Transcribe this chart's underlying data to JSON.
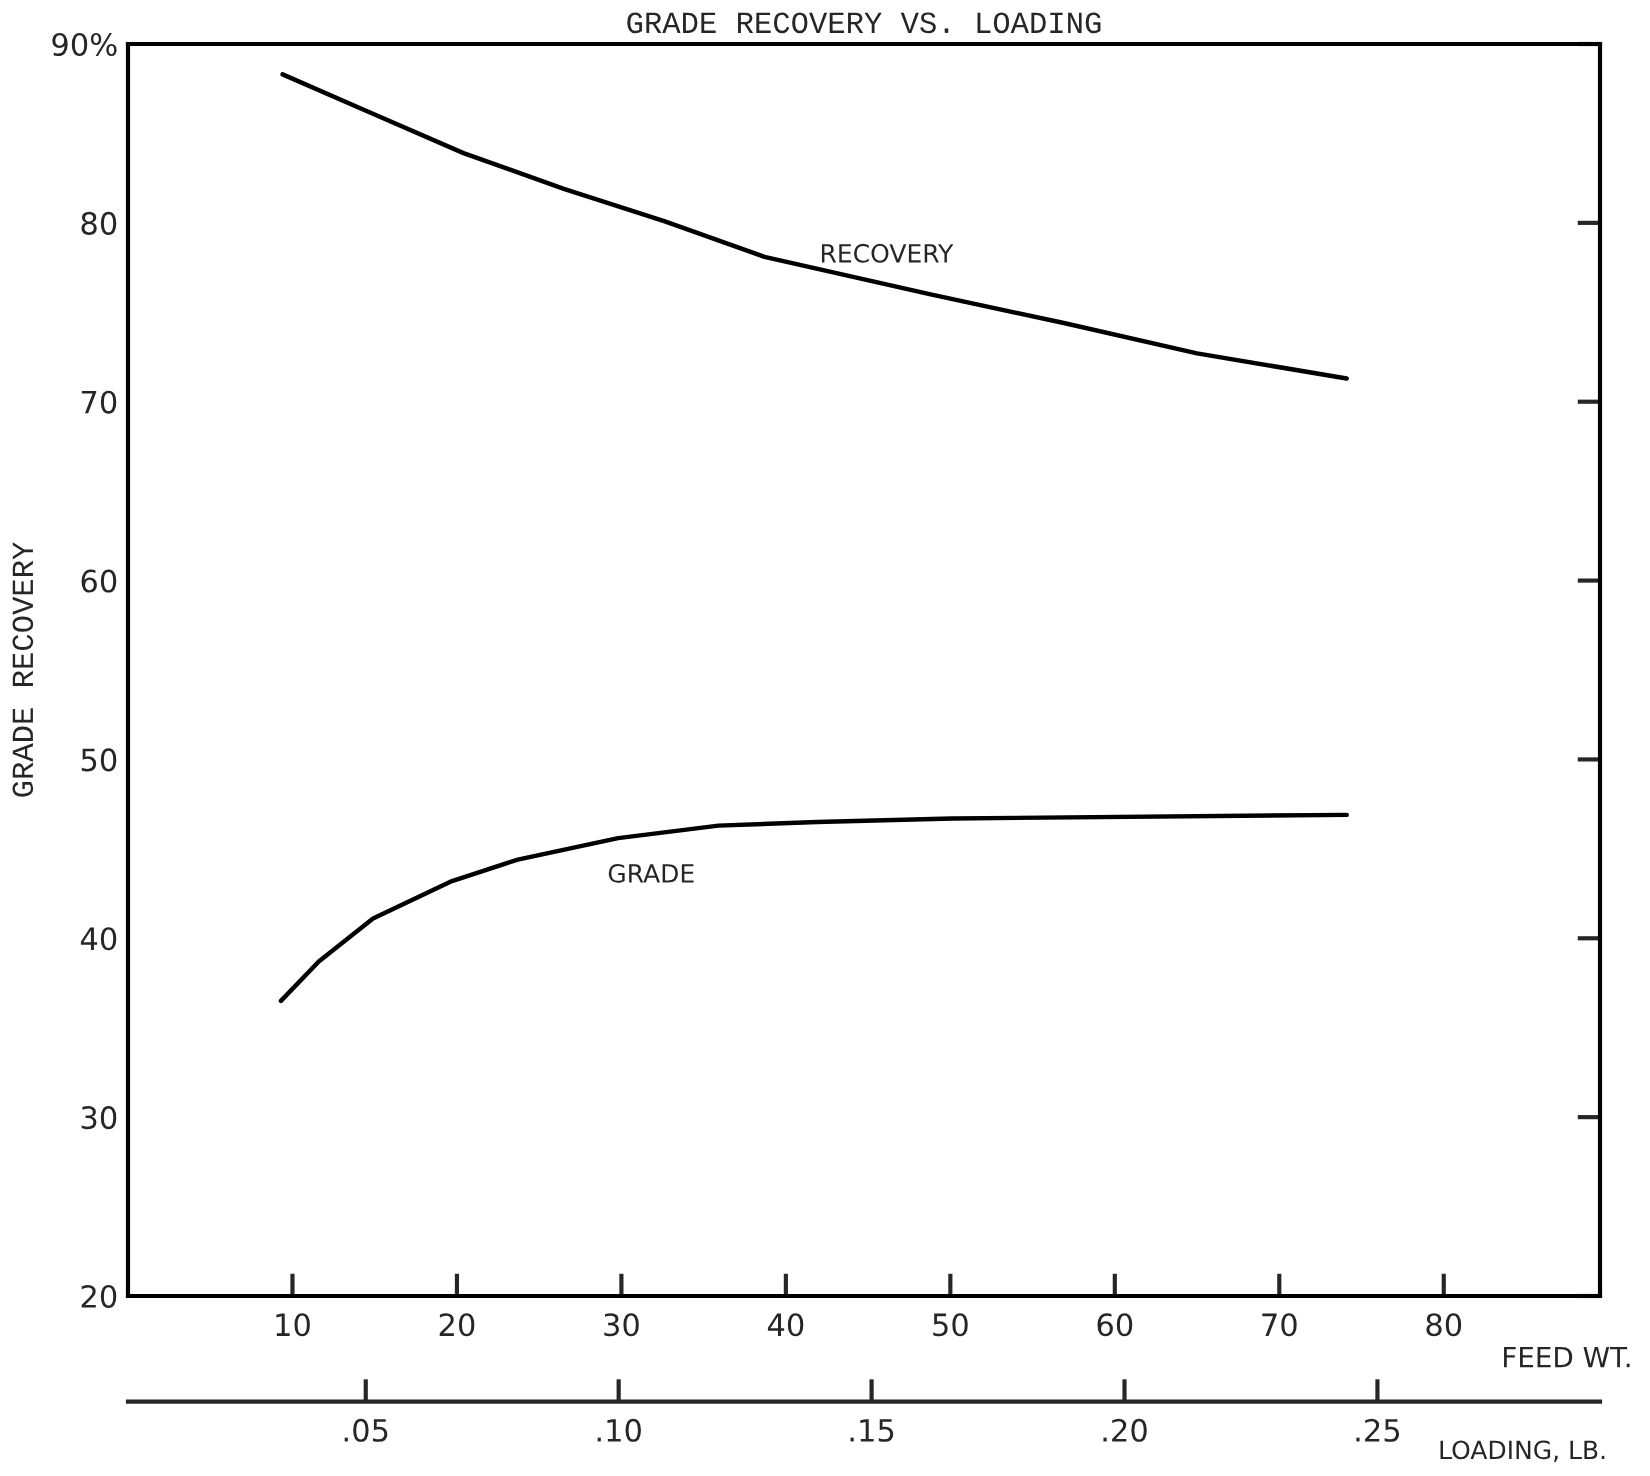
{
  "chart_data": {
    "type": "line",
    "title": "GRADE RECOVERY VS. LOADING",
    "xlabel": "FEED WT.",
    "ylabel": "GRADE RECOVERY",
    "x2label": "LOADING, LB.",
    "series": [
      {
        "name": "RECOVERY",
        "color": "#000000",
        "x": [
          9.4,
          14.4,
          20.4,
          26.5,
          32.6,
          38.7,
          48.8,
          56.9,
          65.0,
          74.1
        ],
        "values": [
          88.3,
          86.3,
          83.9,
          81.9,
          80.1,
          78.1,
          76.0,
          74.4,
          72.7,
          71.3
        ]
      },
      {
        "name": "GRADE",
        "color": "#000000",
        "x": [
          9.3,
          11.6,
          14.9,
          19.7,
          23.7,
          29.8,
          35.9,
          41.9,
          50.1,
          74.1
        ],
        "values": [
          36.5,
          38.7,
          41.1,
          43.2,
          44.4,
          45.6,
          46.3,
          46.5,
          46.7,
          46.9
        ]
      }
    ],
    "xlim": [
      0,
      89.5
    ],
    "xticks": [
      10,
      20,
      30,
      40,
      50,
      60,
      70,
      80
    ],
    "ylim": [
      20,
      90
    ],
    "yticks": [
      20,
      30,
      40,
      50,
      60,
      70,
      80,
      {
        "value": 90,
        "label": "90%"
      }
    ],
    "x2lim": [
      0.003,
      0.294
    ],
    "x2ticks": [
      {
        "value": 0.05,
        "label": ".05"
      },
      {
        "value": 0.1,
        "label": ".10"
      },
      {
        "value": 0.15,
        "label": ".15"
      },
      {
        "value": 0.2,
        "label": ".20"
      },
      {
        "value": 0.25,
        "label": ".25"
      }
    ],
    "grid": false,
    "legend": false,
    "marker": "none",
    "line_style": "solid"
  }
}
